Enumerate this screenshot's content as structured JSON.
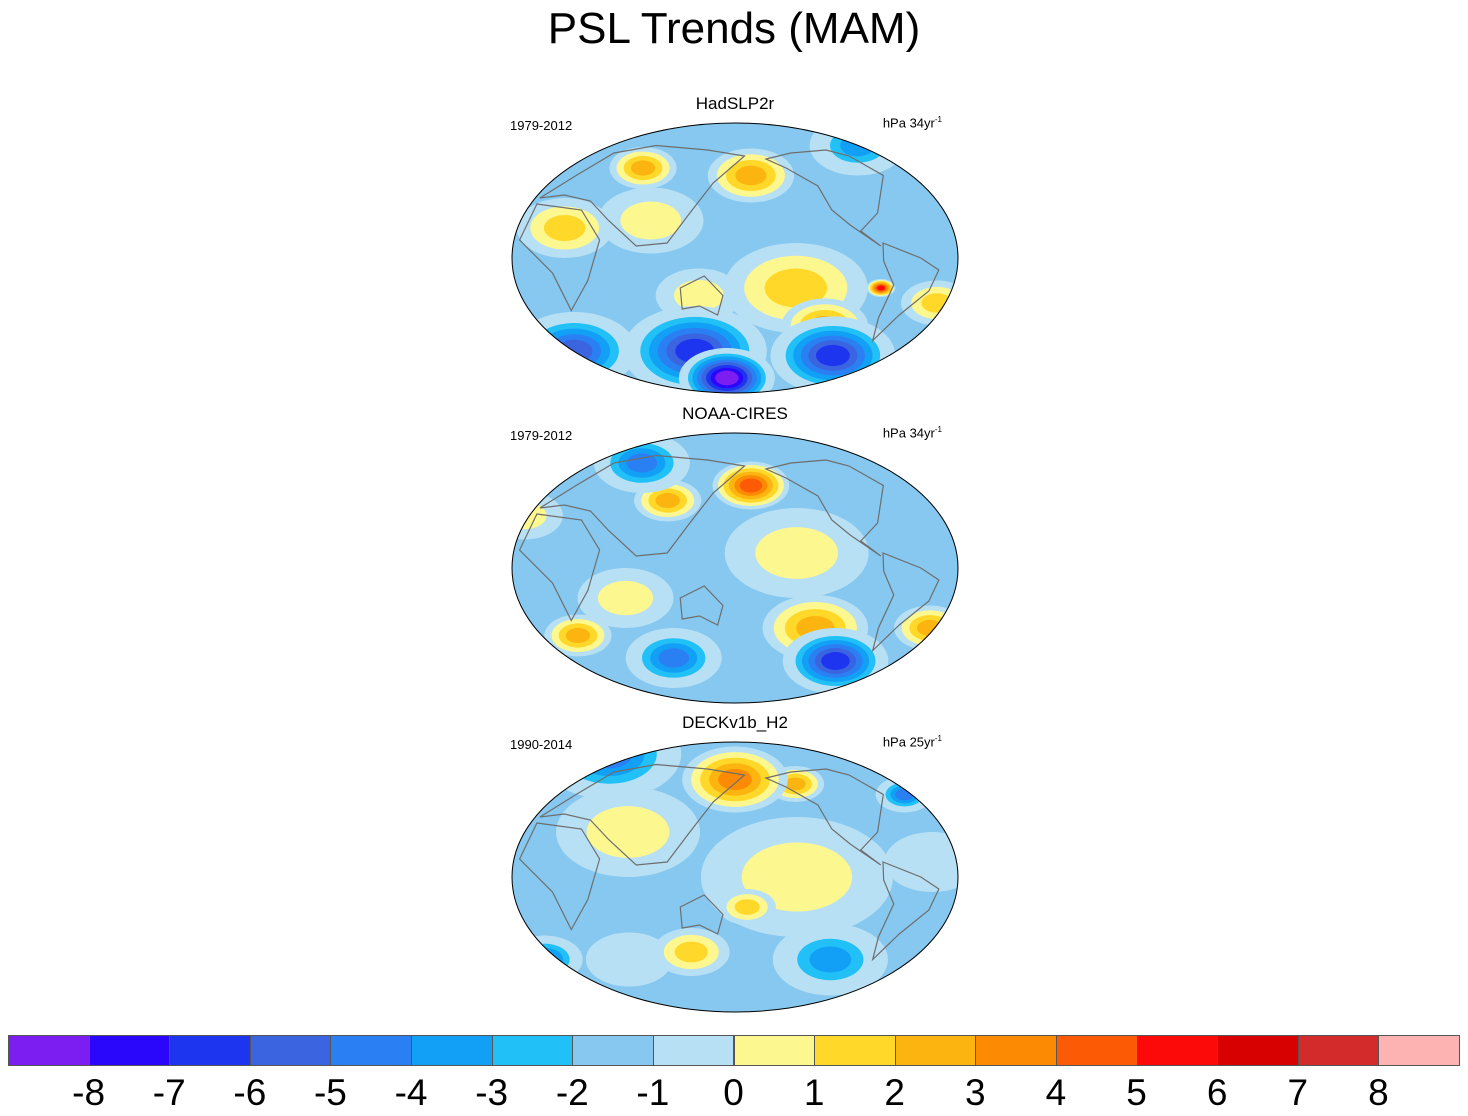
{
  "title": "PSL Trends (MAM)",
  "panels": [
    {
      "name": "HadSLP2r",
      "period": "1979-2012",
      "units_base": "hPa 34yr",
      "units_exp": "-1",
      "blobs": [
        {
          "lon": -60,
          "lat": 75,
          "r": 20,
          "value": -3
        },
        {
          "lon": 70,
          "lat": 60,
          "r": 14,
          "value": 3
        },
        {
          "lon": 175,
          "lat": 55,
          "r": 18,
          "value": 3
        },
        {
          "lon": 90,
          "lat": 25,
          "r": 22,
          "value": 1
        },
        {
          "lon": -150,
          "lat": -20,
          "r": 30,
          "value": 2
        },
        {
          "lon": -120,
          "lat": -45,
          "r": 18,
          "value": 3
        },
        {
          "lon": -80,
          "lat": -20,
          "r": 6,
          "value": 6
        },
        {
          "lon": 20,
          "lat": 20,
          "r": 20,
          "value": 2
        },
        {
          "lon": -30,
          "lat": -30,
          "r": 15,
          "value": 2
        },
        {
          "lon": 130,
          "lat": -25,
          "r": 18,
          "value": 1
        },
        {
          "lon": 0,
          "lat": -62,
          "r": 26,
          "value": -5
        },
        {
          "lon": 120,
          "lat": -62,
          "r": 30,
          "value": -6
        },
        {
          "lon": -100,
          "lat": -65,
          "r": 26,
          "value": -6
        },
        {
          "lon": 150,
          "lat": -80,
          "r": 20,
          "value": -8
        },
        {
          "lon": -30,
          "lat": -75,
          "r": 12,
          "value": 5
        }
      ]
    },
    {
      "name": "NOAA-CIRES",
      "period": "1979-2012",
      "units_base": "hPa 34yr",
      "units_exp": "-1",
      "blobs": [
        {
          "lon": 60,
          "lat": 70,
          "r": 20,
          "value": -4
        },
        {
          "lon": 175,
          "lat": 55,
          "r": 16,
          "value": 5
        },
        {
          "lon": 100,
          "lat": 45,
          "r": 14,
          "value": 3
        },
        {
          "lon": -150,
          "lat": 10,
          "r": 30,
          "value": 1
        },
        {
          "lon": -130,
          "lat": -40,
          "r": 22,
          "value": 3
        },
        {
          "lon": -100,
          "lat": -62,
          "r": 22,
          "value": -6
        },
        {
          "lon": -30,
          "lat": -40,
          "r": 15,
          "value": 3
        },
        {
          "lon": 20,
          "lat": -45,
          "r": 14,
          "value": 3
        },
        {
          "lon": 100,
          "lat": -60,
          "r": 20,
          "value": -4
        },
        {
          "lon": -20,
          "lat": 35,
          "r": 16,
          "value": 1
        },
        {
          "lon": 70,
          "lat": -20,
          "r": 20,
          "value": 1
        }
      ]
    },
    {
      "name": "DECKv1b_H2",
      "period": "1990-2014",
      "units_base": "hPa 25yr",
      "units_exp": "-1",
      "blobs": [
        {
          "lon": 0,
          "lat": 82,
          "r": 30,
          "value": -4
        },
        {
          "lon": 160,
          "lat": 65,
          "r": 22,
          "value": 4
        },
        {
          "lon": -140,
          "lat": 62,
          "r": 12,
          "value": 3
        },
        {
          "lon": -40,
          "lat": 55,
          "r": 12,
          "value": -4
        },
        {
          "lon": 70,
          "lat": 30,
          "r": 30,
          "value": 1
        },
        {
          "lon": -150,
          "lat": 0,
          "r": 40,
          "value": 1
        },
        {
          "lon": 120,
          "lat": -50,
          "r": 16,
          "value": 2
        },
        {
          "lon": -110,
          "lat": -55,
          "r": 24,
          "value": -3
        },
        {
          "lon": -20,
          "lat": -55,
          "r": 16,
          "value": -4
        },
        {
          "lon": 60,
          "lat": -55,
          "r": 18,
          "value": -1
        },
        {
          "lon": -40,
          "lat": 10,
          "r": 20,
          "value": -1
        },
        {
          "lon": 170,
          "lat": -20,
          "r": 12,
          "value": 2
        }
      ]
    }
  ],
  "colorbar": {
    "labels": [
      "-8",
      "-7",
      "-6",
      "-5",
      "-4",
      "-3",
      "-2",
      "-1",
      "0",
      "1",
      "2",
      "3",
      "4",
      "5",
      "6",
      "7",
      "8"
    ],
    "colors": [
      "#7c1ef2",
      "#2a06fb",
      "#1e35f0",
      "#3a64e0",
      "#2a80f2",
      "#12a0f6",
      "#21c0f7",
      "#86c8ef",
      "#b8e0f4",
      "#fdf790",
      "#ffd82a",
      "#fcb510",
      "#fc8b03",
      "#fc5a05",
      "#fc0a0a",
      "#d80101",
      "#d32b2b",
      "#feb3b3"
    ]
  }
}
